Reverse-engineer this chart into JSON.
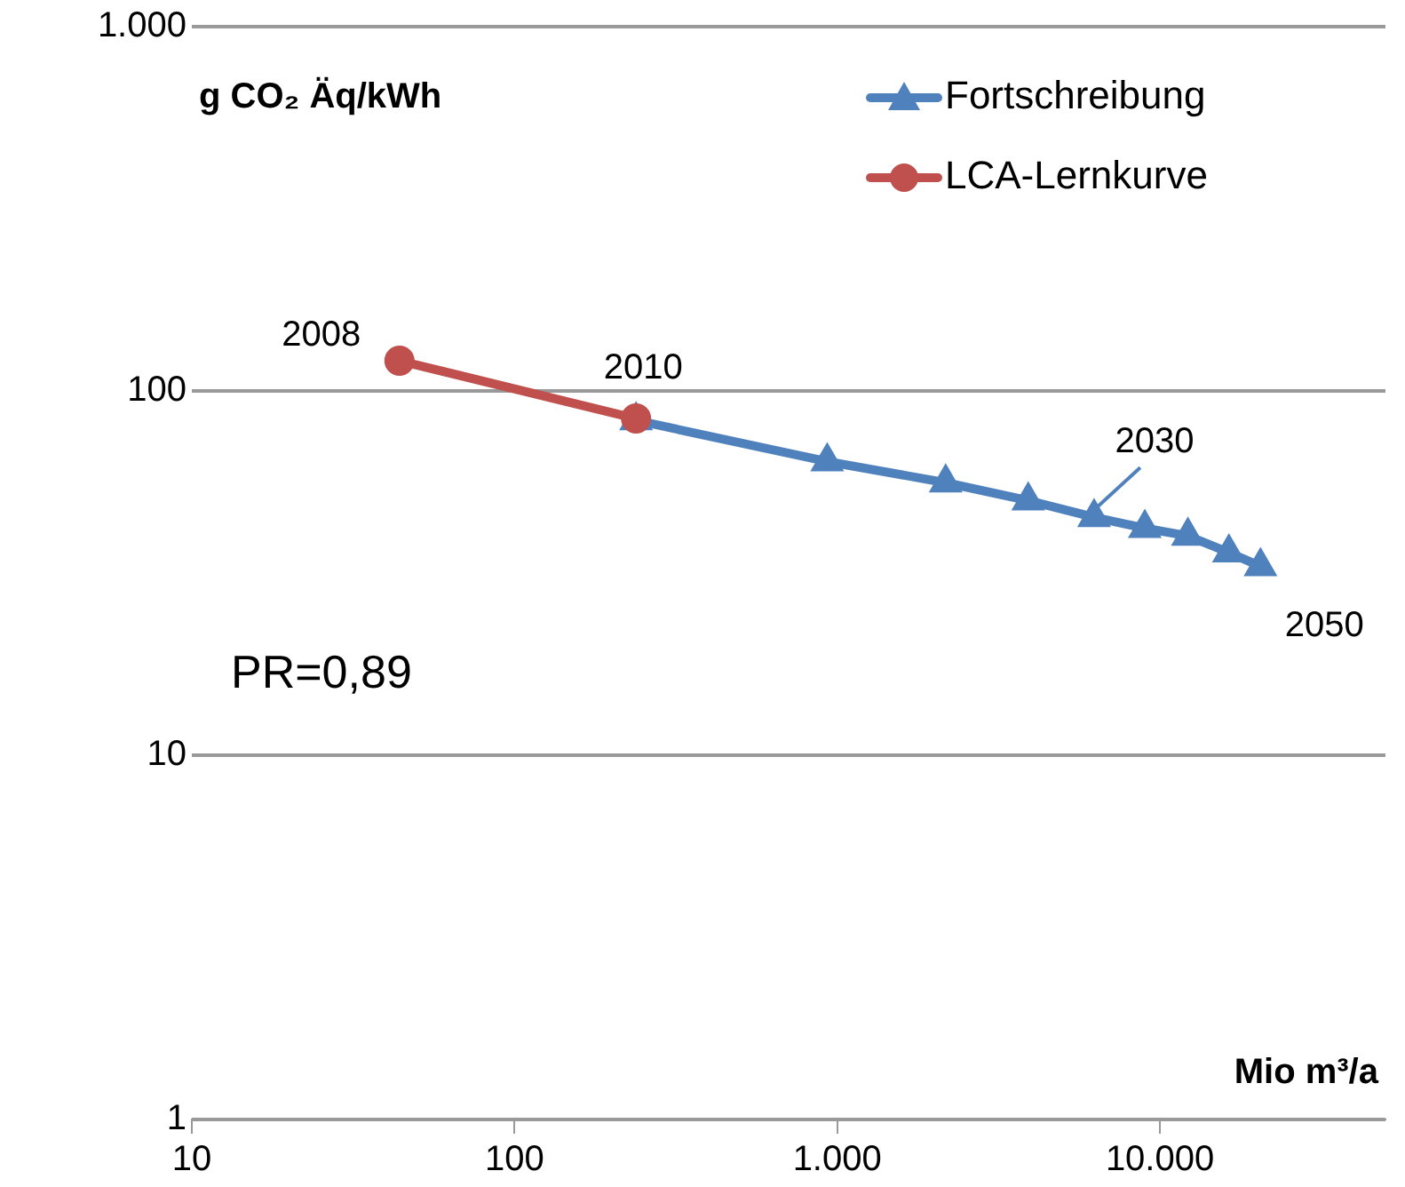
{
  "chart_data": {
    "type": "line",
    "ylabel": "g CO₂ Äq/kWh",
    "xlabel": "Mio m³/a",
    "log": "xy",
    "xlim": [
      10,
      50000
    ],
    "ylim": [
      1,
      1000
    ],
    "xticks": [
      10,
      100,
      {
        "value": 1000,
        "label": "1.000"
      },
      {
        "value": 10000,
        "label": "10.000"
      }
    ],
    "yticks": [
      1,
      10,
      100,
      {
        "value": 1000,
        "label": "1.000"
      }
    ],
    "grid": "y",
    "legend": "top right",
    "series": [
      {
        "name": "Fortschreibung",
        "color": "#4f81bd",
        "marker": "triangle",
        "x": [
          238,
          931,
          2168,
          3908,
          6252,
          8978,
          12210,
          16360,
          20500
        ],
        "values": [
          83,
          64,
          56,
          50,
          45,
          42,
          40,
          36,
          33
        ]
      },
      {
        "name": "LCA-Lernkurve",
        "color": "#c0504d",
        "marker": "circle",
        "x": [
          44,
          238
        ],
        "values": [
          121,
          84
        ]
      }
    ],
    "annotations": [
      {
        "text": "2008",
        "x": 44,
        "y": 121
      },
      {
        "text": "2010",
        "x": 238,
        "y": 84
      },
      {
        "text": "2030",
        "x": 6252,
        "y": 45
      },
      {
        "text": "2050",
        "x": 20500,
        "y": 33
      },
      "PR=0,89"
    ]
  }
}
